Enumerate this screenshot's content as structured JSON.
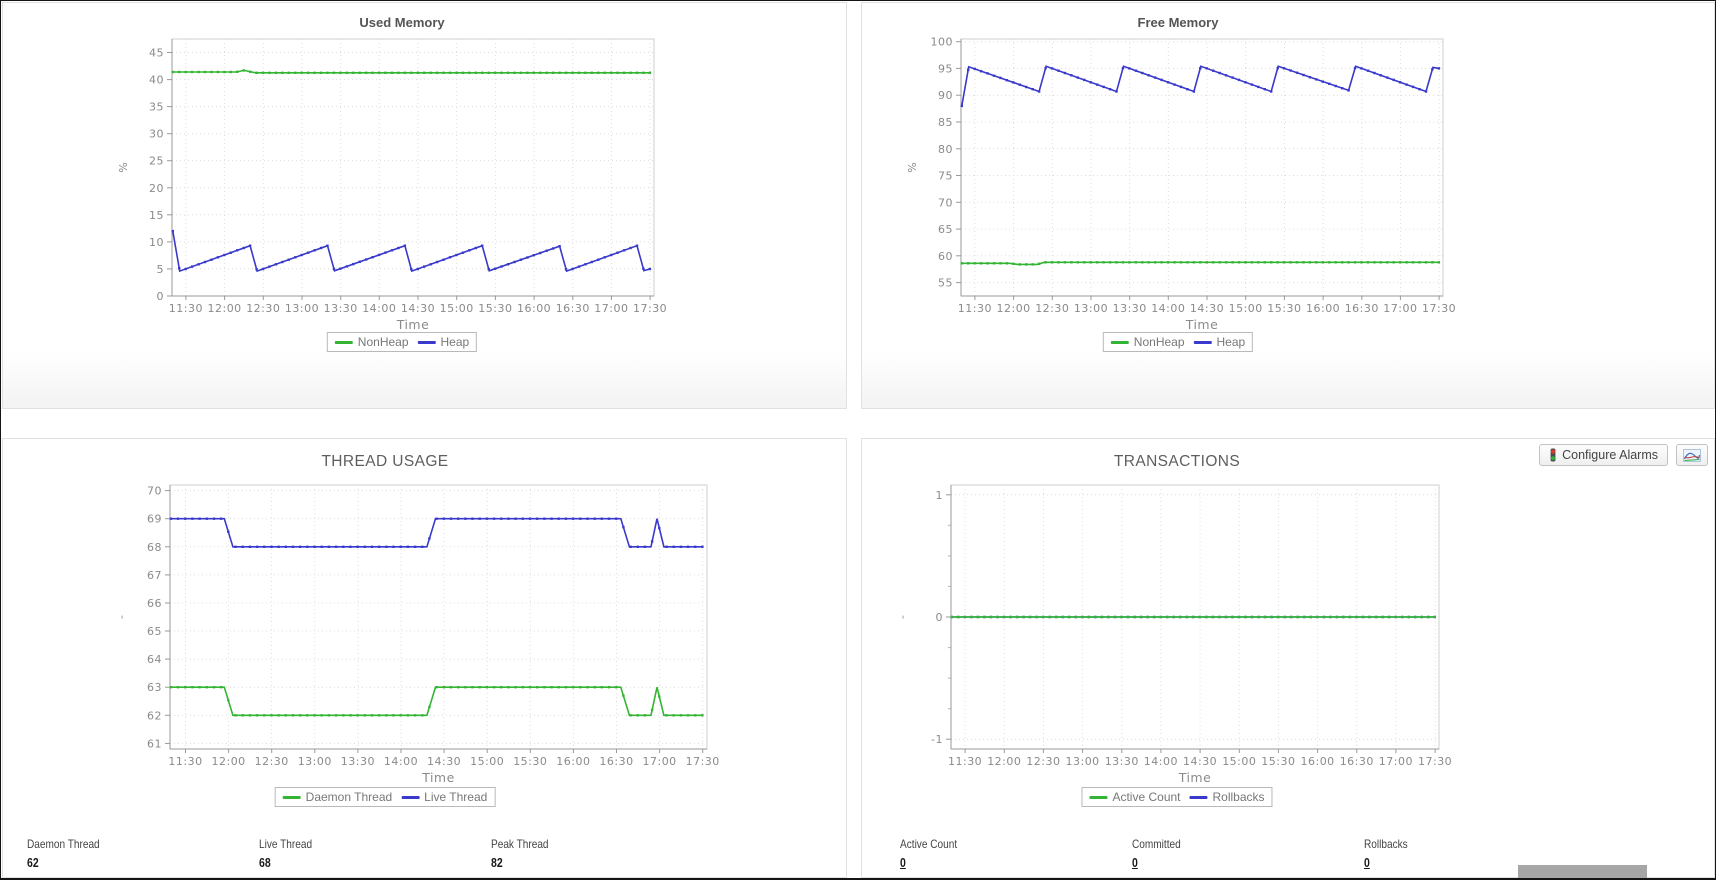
{
  "buttons": {
    "configure_alarms_label": "Configure Alarms"
  },
  "stats": {
    "thread": [
      {
        "label": "Daemon Thread",
        "value": "62"
      },
      {
        "label": "Live Thread",
        "value": "68"
      },
      {
        "label": "Peak Thread",
        "value": "82"
      }
    ],
    "transaction": [
      {
        "label": "Active Count",
        "value": "0"
      },
      {
        "label": "Committed",
        "value": "0"
      },
      {
        "label": "Rollbacks",
        "value": "0"
      }
    ]
  },
  "colors": {
    "series_green": "#33b533",
    "series_blue": "#3939cc",
    "grid": "#dcdcdc",
    "axis": "#999999",
    "tick_text": "#8a8a8a"
  },
  "chart_data": [
    {
      "type": "line",
      "title": "Used Memory",
      "xlabel": "Time",
      "ylabel": "%",
      "x_range": [
        11.32,
        17.55
      ],
      "xtick_values": [
        11.5,
        12,
        12.5,
        13,
        13.5,
        14,
        14.5,
        15,
        15.5,
        16,
        16.5,
        17,
        17.5
      ],
      "xtick_labels": [
        "11:30",
        "12:00",
        "12:30",
        "13:00",
        "13:30",
        "14:00",
        "14:30",
        "15:00",
        "15:30",
        "16:00",
        "16:30",
        "17:00",
        "17:30"
      ],
      "ylim": [
        0,
        47.5
      ],
      "ytick_values": [
        0,
        5,
        10,
        15,
        20,
        25,
        30,
        35,
        40,
        45
      ],
      "ytick_labels": [
        "0",
        "5",
        "10",
        "15",
        "20",
        "25",
        "30",
        "35",
        "40",
        "45"
      ],
      "grid": true,
      "legend_position": "bottom",
      "marker_step_min": 5,
      "series": [
        {
          "name": "NonHeap",
          "color": "#33b533",
          "points": [
            [
              11.33,
              41.4
            ],
            [
              12.15,
              41.4
            ],
            [
              12.25,
              41.7
            ],
            [
              12.4,
              41.25
            ],
            [
              17.5,
              41.25
            ]
          ]
        },
        {
          "name": "Heap",
          "color": "#3939cc",
          "points": [
            [
              11.33,
              12
            ],
            [
              11.42,
              4.6
            ],
            [
              12.33,
              9.3
            ],
            [
              12.42,
              4.6
            ],
            [
              13.33,
              9.3
            ],
            [
              13.42,
              4.65
            ],
            [
              14.33,
              9.3
            ],
            [
              14.42,
              4.6
            ],
            [
              15.33,
              9.3
            ],
            [
              15.42,
              4.65
            ],
            [
              16.33,
              9.2
            ],
            [
              16.42,
              4.6
            ],
            [
              17.33,
              9.3
            ],
            [
              17.42,
              4.7
            ],
            [
              17.5,
              5.0
            ]
          ]
        }
      ]
    },
    {
      "type": "line",
      "title": "Free Memory",
      "xlabel": "Time",
      "ylabel": "%",
      "x_range": [
        11.32,
        17.55
      ],
      "xtick_values": [
        11.5,
        12,
        12.5,
        13,
        13.5,
        14,
        14.5,
        15,
        15.5,
        16,
        16.5,
        17,
        17.5
      ],
      "xtick_labels": [
        "11:30",
        "12:00",
        "12:30",
        "13:00",
        "13:30",
        "14:00",
        "14:30",
        "15:00",
        "15:30",
        "16:00",
        "16:30",
        "17:00",
        "17:30"
      ],
      "ylim": [
        52.5,
        100.5
      ],
      "ytick_values": [
        55,
        60,
        65,
        70,
        75,
        80,
        85,
        90,
        95,
        100
      ],
      "ytick_labels": [
        "55",
        "60",
        "65",
        "70",
        "75",
        "80",
        "85",
        "90",
        "95",
        "100"
      ],
      "grid": true,
      "legend_position": "bottom",
      "marker_step_min": 5,
      "series": [
        {
          "name": "NonHeap",
          "color": "#33b533",
          "points": [
            [
              11.33,
              58.6
            ],
            [
              11.95,
              58.6
            ],
            [
              12.05,
              58.4
            ],
            [
              12.3,
              58.4
            ],
            [
              12.4,
              58.8
            ],
            [
              17.5,
              58.8
            ]
          ]
        },
        {
          "name": "Heap",
          "color": "#3939cc",
          "points": [
            [
              11.33,
              88
            ],
            [
              11.42,
              95.3
            ],
            [
              12.33,
              90.7
            ],
            [
              12.42,
              95.4
            ],
            [
              13.33,
              90.7
            ],
            [
              13.42,
              95.4
            ],
            [
              14.33,
              90.7
            ],
            [
              14.42,
              95.4
            ],
            [
              15.33,
              90.7
            ],
            [
              15.42,
              95.4
            ],
            [
              16.33,
              90.9
            ],
            [
              16.42,
              95.4
            ],
            [
              17.33,
              90.7
            ],
            [
              17.42,
              95.2
            ],
            [
              17.5,
              95.0
            ]
          ]
        }
      ]
    },
    {
      "type": "line",
      "title": "THREAD USAGE",
      "xlabel": "Time",
      "ylabel": "-",
      "x_range": [
        11.32,
        17.55
      ],
      "xtick_values": [
        11.5,
        12,
        12.5,
        13,
        13.5,
        14,
        14.5,
        15,
        15.5,
        16,
        16.5,
        17,
        17.5
      ],
      "xtick_labels": [
        "11:30",
        "12:00",
        "12:30",
        "13:00",
        "13:30",
        "14:00",
        "14:30",
        "15:00",
        "15:30",
        "16:00",
        "16:30",
        "17:00",
        "17:30"
      ],
      "ylim": [
        60.8,
        70.2
      ],
      "ytick_values": [
        61,
        62,
        63,
        64,
        65,
        66,
        67,
        68,
        69,
        70
      ],
      "ytick_labels": [
        "61",
        "62",
        "63",
        "64",
        "65",
        "66",
        "67",
        "68",
        "69",
        "70"
      ],
      "grid": true,
      "legend_position": "bottom",
      "marker_step_min": 5,
      "series": [
        {
          "name": "Daemon Thread",
          "color": "#33b533",
          "points": [
            [
              11.33,
              63
            ],
            [
              11.95,
              63
            ],
            [
              12.05,
              62
            ],
            [
              14.3,
              62
            ],
            [
              14.4,
              63
            ],
            [
              16.55,
              63
            ],
            [
              16.65,
              62
            ],
            [
              16.9,
              62
            ],
            [
              16.97,
              63
            ],
            [
              17.05,
              62
            ],
            [
              17.5,
              62
            ]
          ]
        },
        {
          "name": "Live Thread",
          "color": "#3939cc",
          "points": [
            [
              11.33,
              69
            ],
            [
              11.95,
              69
            ],
            [
              12.05,
              68
            ],
            [
              14.3,
              68
            ],
            [
              14.4,
              69
            ],
            [
              16.55,
              69
            ],
            [
              16.65,
              68
            ],
            [
              16.9,
              68
            ],
            [
              16.97,
              69
            ],
            [
              17.05,
              68
            ],
            [
              17.5,
              68
            ]
          ]
        }
      ]
    },
    {
      "type": "line",
      "title": "TRANSACTIONS",
      "xlabel": "Time",
      "ylabel": "-",
      "x_range": [
        11.32,
        17.55
      ],
      "xtick_values": [
        11.5,
        12,
        12.5,
        13,
        13.5,
        14,
        14.5,
        15,
        15.5,
        16,
        16.5,
        17,
        17.5
      ],
      "xtick_labels": [
        "11:30",
        "12:00",
        "12:30",
        "13:00",
        "13:30",
        "14:00",
        "14:30",
        "15:00",
        "15:30",
        "16:00",
        "16:30",
        "17:00",
        "17:30"
      ],
      "ylim": [
        -1.08,
        1.08
      ],
      "ytick_values": [
        -1,
        0,
        1
      ],
      "ytick_labels": [
        "-1",
        "0",
        "1"
      ],
      "ytick_minor": [
        -0.75,
        -0.5,
        -0.25,
        0.25,
        0.5,
        0.75
      ],
      "grid": true,
      "legend_position": "bottom",
      "marker_step_min": 5,
      "series": [
        {
          "name": "Active Count",
          "color": "#33b533",
          "points": [
            [
              11.33,
              0
            ],
            [
              17.5,
              0
            ]
          ]
        },
        {
          "name": "Rollbacks",
          "color": "#3939cc",
          "points": [
            [
              11.33,
              0
            ],
            [
              17.5,
              0
            ]
          ]
        }
      ]
    }
  ]
}
